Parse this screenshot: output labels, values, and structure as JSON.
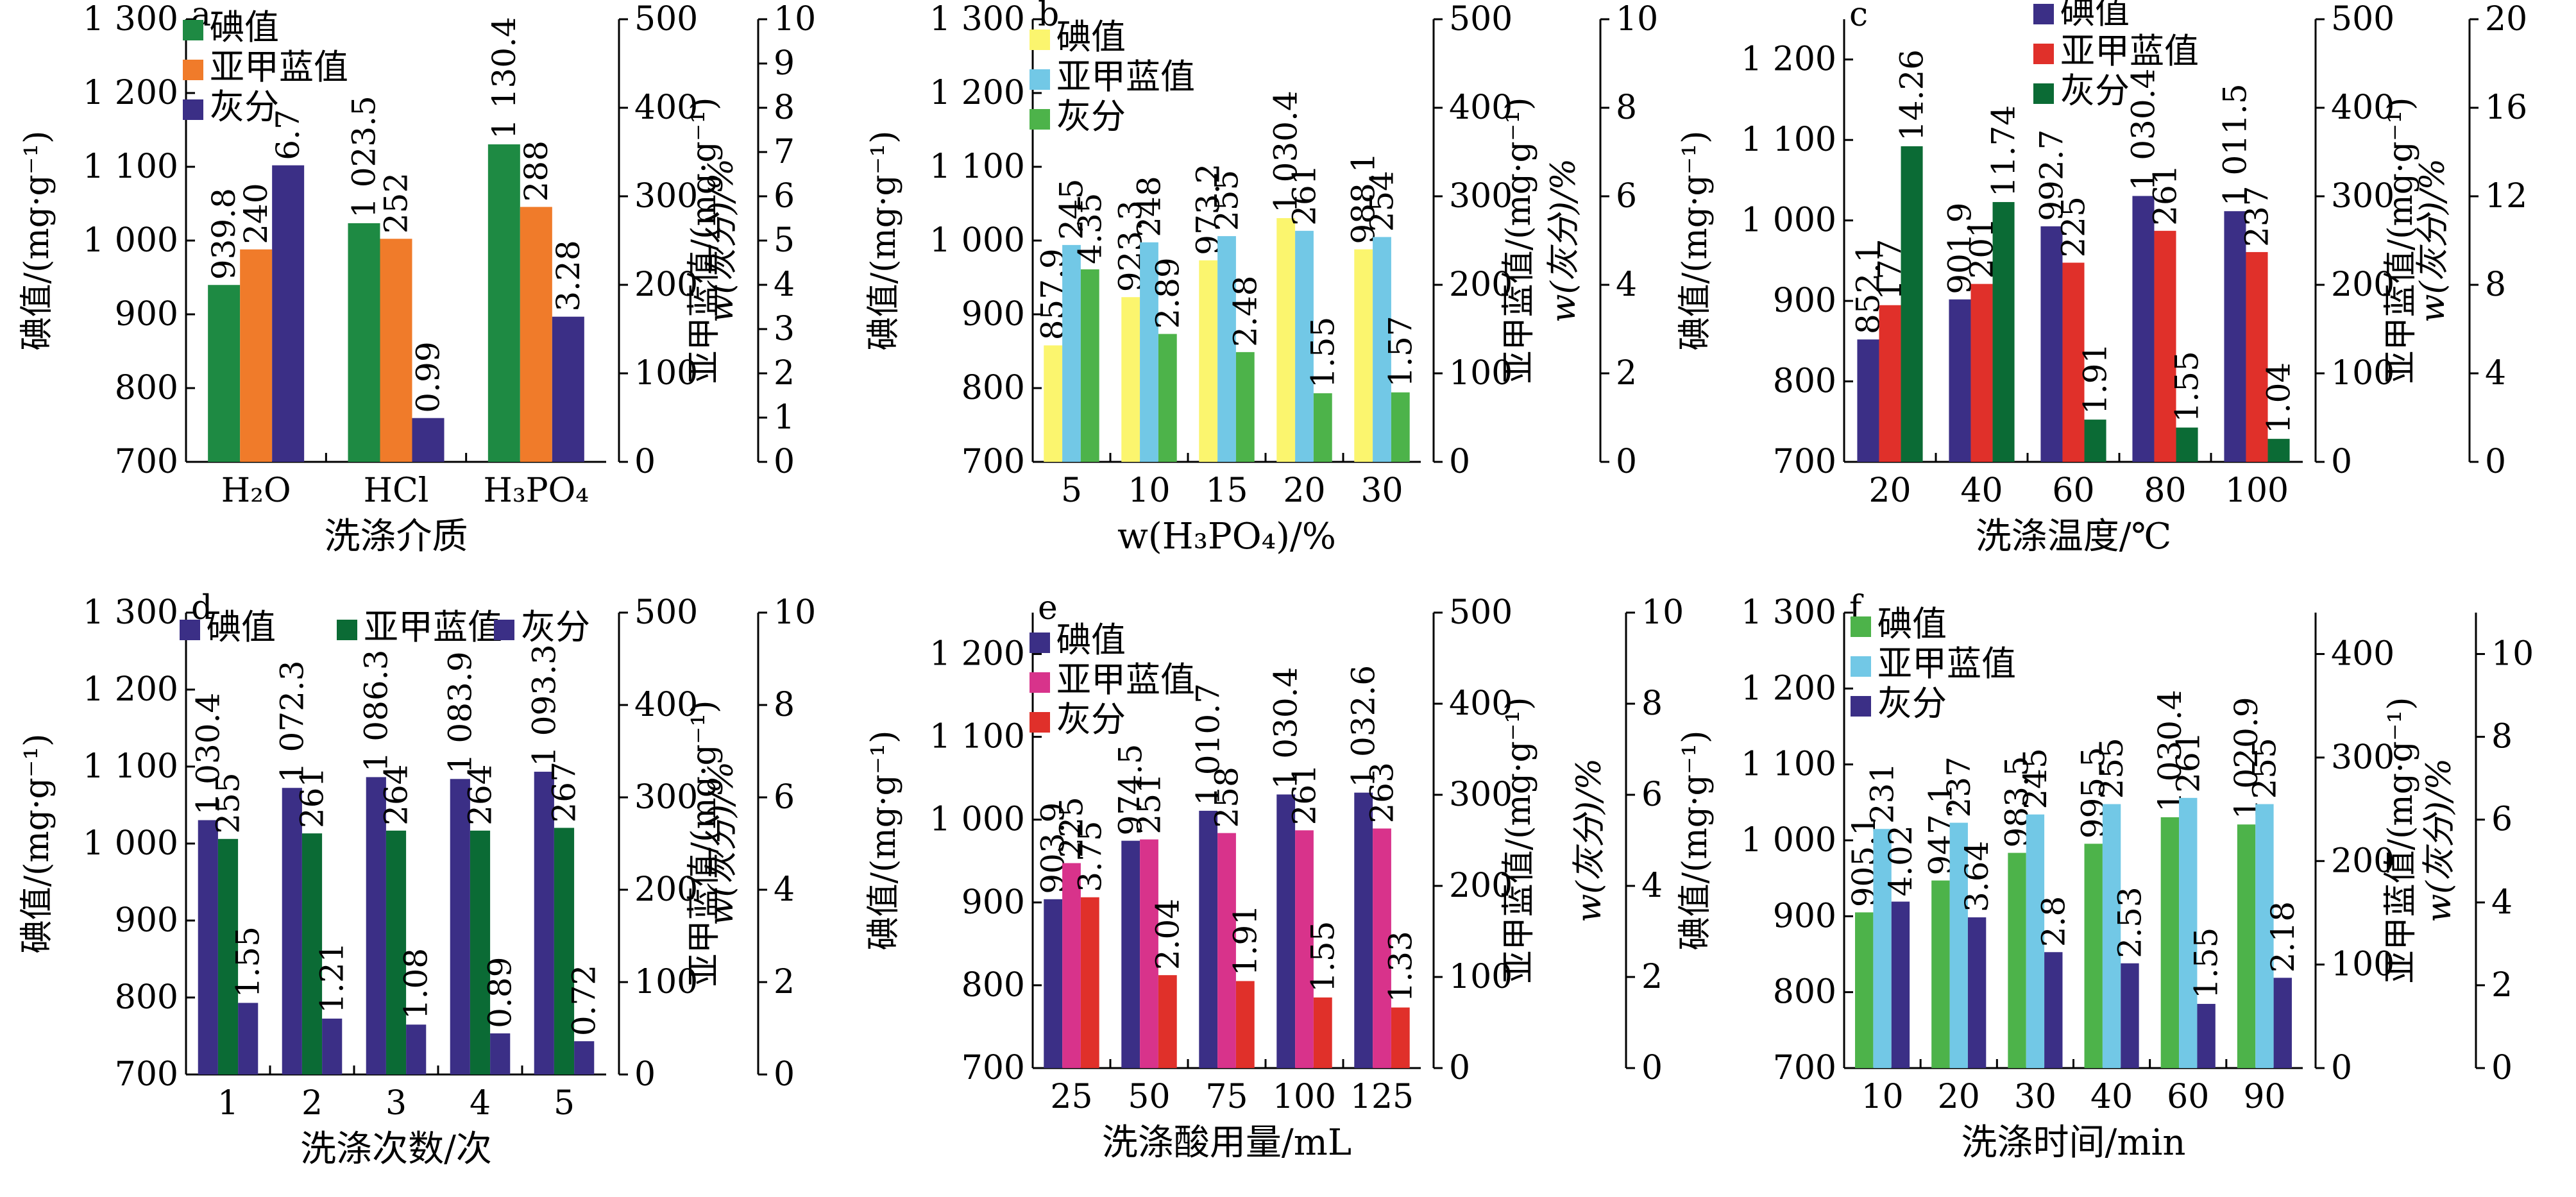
{
  "colors": {
    "green": "#1e8a43",
    "orange": "#f07b2a",
    "indigo": "#3b2f86",
    "yellow": "#fbf56e",
    "skyblue": "#72c8e6",
    "lightgreen": "#4db34a",
    "red": "#e0302a",
    "darkgreen": "#0b6b35",
    "magenta": "#d8338b",
    "axis": "#000000"
  },
  "chart_data": [
    {
      "panel": "a",
      "type": "bar",
      "xlabel": "洗涤介质",
      "categories": [
        "H₂O",
        "HCl",
        "H₃PO₄"
      ],
      "ylabel_left": "碘值/(mg·g⁻¹)",
      "ylabel_right1": "亚甲蓝值/(mg·g⁻¹)",
      "ylabel_right2": "w(灰分)/%",
      "ylim_left": [
        700,
        1300
      ],
      "yticks_left": [
        700,
        800,
        900,
        1000,
        1100,
        1200,
        1300
      ],
      "ytick_labels_left": [
        "700",
        "800",
        "900",
        "1 000",
        "1 100",
        "1 200",
        "1 300"
      ],
      "ylim_right1": [
        0,
        500
      ],
      "yticks_right1": [
        0,
        100,
        200,
        300,
        400,
        500
      ],
      "ylim_right2": [
        0,
        10
      ],
      "yticks_right2": [
        0,
        1,
        2,
        3,
        4,
        5,
        6,
        7,
        8,
        9,
        10
      ],
      "legend_position": "top-left",
      "series": [
        {
          "name": "碘值",
          "axis": "left",
          "color": "green",
          "values": [
            939.8,
            1023.5,
            1130.4
          ],
          "labels": [
            "939.8",
            "1 023.5",
            "1 130.4"
          ]
        },
        {
          "name": "亚甲蓝值",
          "axis": "right1",
          "color": "orange",
          "values": [
            240,
            252,
            288
          ],
          "labels": [
            "240",
            "252",
            "288"
          ]
        },
        {
          "name": "灰分",
          "axis": "right2",
          "color": "indigo",
          "values": [
            6.7,
            0.99,
            3.28
          ],
          "labels": [
            "6.7",
            "0.99",
            "3.28"
          ]
        }
      ]
    },
    {
      "panel": "b",
      "type": "bar",
      "xlabel": "w(H₃PO₄)/%",
      "categories": [
        "5",
        "10",
        "15",
        "20",
        "30"
      ],
      "ylabel_left": "碘值/(mg·g⁻¹)",
      "ylabel_right1": "亚甲蓝值/(mg·g⁻¹)",
      "ylabel_right2": "w(灰分)/%",
      "ylim_left": [
        700,
        1300
      ],
      "yticks_left": [
        700,
        800,
        900,
        1000,
        1100,
        1200,
        1300
      ],
      "ytick_labels_left": [
        "700",
        "800",
        "900",
        "1 000",
        "1 100",
        "1 200",
        "1 300"
      ],
      "ylim_right1": [
        0,
        500
      ],
      "yticks_right1": [
        0,
        100,
        200,
        300,
        400,
        500
      ],
      "ylim_right2": [
        0,
        10
      ],
      "yticks_right2": [
        0,
        2,
        4,
        6,
        8,
        10
      ],
      "legend_position": "top-left",
      "series": [
        {
          "name": "碘值",
          "axis": "left",
          "color": "yellow",
          "values": [
            857.9,
            923.3,
            973.2,
            1030.4,
            988.1
          ],
          "labels": [
            "857.9",
            "923.3",
            "973.2",
            "1 030.4",
            "988.1"
          ]
        },
        {
          "name": "亚甲蓝值",
          "axis": "right1",
          "color": "skyblue",
          "values": [
            245,
            248,
            255,
            261,
            254
          ],
          "labels": [
            "245",
            "248",
            "255",
            "261",
            "254"
          ]
        },
        {
          "name": "灰分",
          "axis": "right2",
          "color": "lightgreen",
          "values": [
            4.35,
            2.89,
            2.48,
            1.55,
            1.57
          ],
          "labels": [
            "4.35",
            "2.89",
            "2.48",
            "1.55",
            "1.57"
          ]
        }
      ]
    },
    {
      "panel": "c",
      "type": "bar",
      "xlabel": "洗涤温度/℃",
      "categories": [
        "20",
        "40",
        "60",
        "80",
        "100"
      ],
      "ylabel_left": "碘值/(mg·g⁻¹)",
      "ylabel_right1": "亚甲蓝值/(mg·g⁻¹)",
      "ylabel_right2": "w(灰分)/%",
      "ylim_left": [
        700,
        1250
      ],
      "yticks_left": [
        700,
        800,
        900,
        1000,
        1100,
        1200
      ],
      "ytick_labels_left": [
        "700",
        "800",
        "900",
        "1 000",
        "1 100",
        "1 200"
      ],
      "ylim_right1": [
        0,
        500
      ],
      "yticks_right1": [
        0,
        100,
        200,
        300,
        400,
        500
      ],
      "ylim_right2": [
        0,
        20
      ],
      "yticks_right2": [
        0,
        4,
        8,
        12,
        16,
        20
      ],
      "legend_position": "top-center",
      "series": [
        {
          "name": "碘值",
          "axis": "left",
          "color": "indigo",
          "values": [
            852.1,
            901.9,
            992.7,
            1030.4,
            1011.5
          ],
          "labels": [
            "852.1",
            "901.9",
            "992.7",
            "1 030.4",
            "1 011.5"
          ]
        },
        {
          "name": "亚甲蓝值",
          "axis": "right1",
          "color": "red",
          "values": [
            177,
            201,
            225,
            261,
            237
          ],
          "labels": [
            "177",
            "201",
            "225",
            "261",
            "237"
          ]
        },
        {
          "name": "灰分",
          "axis": "right2",
          "color": "darkgreen",
          "values": [
            14.26,
            11.74,
            1.91,
            1.55,
            1.04
          ],
          "labels": [
            "14.26",
            "11.74",
            "1.91",
            "1.55",
            "1.04"
          ]
        }
      ]
    },
    {
      "panel": "d",
      "type": "bar",
      "xlabel": "洗涤次数/次",
      "categories": [
        "1",
        "2",
        "3",
        "4",
        "5"
      ],
      "ylabel_left": "碘值/(mg·g⁻¹)",
      "ylabel_right1": "亚甲蓝值/(mg·g⁻¹)",
      "ylabel_right2": "w(灰分)/%",
      "ylim_left": [
        700,
        1300
      ],
      "yticks_left": [
        700,
        800,
        900,
        1000,
        1100,
        1200,
        1300
      ],
      "ytick_labels_left": [
        "700",
        "800",
        "900",
        "1 000",
        "1 100",
        "1 200",
        "1 300"
      ],
      "ylim_right1": [
        0,
        500
      ],
      "yticks_right1": [
        0,
        100,
        200,
        300,
        400,
        500
      ],
      "ylim_right2": [
        0,
        10
      ],
      "yticks_right2": [
        0,
        2,
        4,
        6,
        8,
        10
      ],
      "legend_position": "top (single row)",
      "series": [
        {
          "name": "碘值",
          "axis": "left",
          "color": "indigo",
          "values": [
            1030.4,
            1072.3,
            1086.3,
            1083.9,
            1093.3
          ],
          "labels": [
            "1 030.4",
            "1 072.3",
            "1 086.3",
            "1 083.9",
            "1 093.3"
          ]
        },
        {
          "name": "亚甲蓝值",
          "axis": "right1",
          "color": "darkgreen",
          "values": [
            255,
            261,
            264,
            264,
            267
          ],
          "labels": [
            "255",
            "261",
            "264",
            "264",
            "267"
          ]
        },
        {
          "name": "灰分",
          "axis": "right2",
          "color": "indigo",
          "values": [
            1.55,
            1.21,
            1.08,
            0.89,
            0.72
          ],
          "labels": [
            "1.55",
            "1.21",
            "1.08",
            "0.89",
            "0.72"
          ]
        }
      ]
    },
    {
      "panel": "e",
      "type": "bar",
      "xlabel": "洗涤酸用量/mL",
      "categories": [
        "25",
        "50",
        "75",
        "100",
        "125"
      ],
      "ylabel_left": "碘值/(mg·g⁻¹)",
      "ylabel_right1": "亚甲蓝值/(mg·g⁻¹)",
      "ylabel_right2": "w(灰分)/%",
      "ylim_left": [
        700,
        1250
      ],
      "yticks_left": [
        700,
        800,
        900,
        1000,
        1100,
        1200
      ],
      "ytick_labels_left": [
        "700",
        "800",
        "900",
        "1 000",
        "1 100",
        "1 200"
      ],
      "ylim_right1": [
        0,
        500
      ],
      "yticks_right1": [
        0,
        100,
        200,
        300,
        400,
        500
      ],
      "ylim_right2": [
        0,
        10
      ],
      "yticks_right2": [
        0,
        2,
        4,
        6,
        8,
        10
      ],
      "legend_position": "top-left",
      "series": [
        {
          "name": "碘值",
          "axis": "left",
          "color": "indigo",
          "values": [
            903.9,
            974.5,
            1010.7,
            1030.4,
            1032.6
          ],
          "labels": [
            "903.9",
            "974.5",
            "1 010.7",
            "1 030.4",
            "1 032.6"
          ]
        },
        {
          "name": "亚甲蓝值",
          "axis": "right1",
          "color": "magenta",
          "values": [
            225,
            251,
            258,
            261,
            263
          ],
          "labels": [
            "225",
            "251",
            "258",
            "261",
            "263"
          ]
        },
        {
          "name": "灰分",
          "axis": "right2",
          "color": "red",
          "values": [
            3.75,
            2.04,
            1.91,
            1.55,
            1.33
          ],
          "labels": [
            "3.75",
            "2.04",
            "1.91",
            "1.55",
            "1.33"
          ]
        }
      ]
    },
    {
      "panel": "f",
      "type": "bar",
      "xlabel": "洗涤时间/min",
      "categories": [
        "10",
        "20",
        "30",
        "40",
        "60",
        "90"
      ],
      "ylabel_left": "碘值/(mg·g⁻¹)",
      "ylabel_right1": "亚甲蓝值/(mg·g⁻¹)",
      "ylabel_right2": "w(灰分)/%",
      "ylim_left": [
        700,
        1300
      ],
      "yticks_left": [
        700,
        800,
        900,
        1000,
        1100,
        1200,
        1300
      ],
      "ytick_labels_left": [
        "700",
        "800",
        "900",
        "1 000",
        "1 100",
        "1 200",
        "1 300"
      ],
      "ylim_right1": [
        0,
        440
      ],
      "yticks_right1": [
        0,
        100,
        200,
        300,
        400
      ],
      "ylim_right2": [
        0,
        11
      ],
      "yticks_right2": [
        0,
        2,
        4,
        6,
        8,
        10
      ],
      "legend_position": "top-left",
      "series": [
        {
          "name": "碘值",
          "axis": "left",
          "color": "lightgreen",
          "values": [
            905.1,
            947.1,
            983.5,
            995.5,
            1030.4,
            1020.9
          ],
          "labels": [
            "905.1",
            "947.1",
            "983.5",
            "995.5",
            "1 030.4",
            "1 020.9"
          ]
        },
        {
          "name": "亚甲蓝值",
          "axis": "right1",
          "color": "skyblue",
          "values": [
            231,
            237,
            245,
            255,
            261,
            255
          ],
          "labels": [
            "231",
            "237",
            "245",
            "255",
            "261",
            "255"
          ]
        },
        {
          "name": "灰分",
          "axis": "right2",
          "color": "indigo",
          "values": [
            4.02,
            3.64,
            2.8,
            2.53,
            1.55,
            2.18
          ],
          "labels": [
            "4.02",
            "3.64",
            "2.8",
            "2.53",
            "1.55",
            "2.18"
          ]
        }
      ]
    }
  ]
}
